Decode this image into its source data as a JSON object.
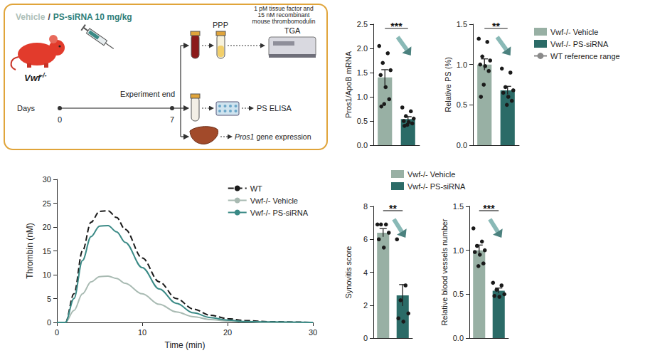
{
  "schematic": {
    "treatment": {
      "vehicle": "Vehicle",
      "separator": "/",
      "drug": "PS-siRNA 10 mg/kg"
    },
    "model": {
      "gene": "Vwf",
      "genotype": "-/-"
    },
    "timeline": {
      "axis_label": "Days",
      "ticks": [
        0,
        7
      ],
      "event": "Experiment end"
    },
    "top_branch": {
      "plasma": "PPP",
      "assay": "TGA",
      "conditions": "1 pM tissue factor and 15 nM recombinant mouse thrombomodulin"
    },
    "middle_branch": {
      "assay": "PS ELISA"
    },
    "bottom_branch": {
      "gene": "Pros1",
      "assay": "gene expression"
    }
  },
  "chart_data": [
    {
      "type": "bar",
      "y_label": "Pros1/ApoB mRNA",
      "categories": [
        null,
        null
      ],
      "series": [
        {
          "name": "Vwf-/- Vehicle",
          "color": "#98b0a4",
          "values": [
            1.4,
            null
          ],
          "error": [
            0.16,
            null
          ],
          "points": [
            [
              2.05,
              1.9,
              1.7,
              1.55,
              1.45,
              1.2,
              0.95,
              0.85,
              0.8
            ],
            null
          ]
        },
        {
          "name": "Vwf-/- PS-siRNA",
          "color": "#2b6b67",
          "values": [
            null,
            0.54
          ],
          "error": [
            null,
            0.05
          ],
          "points": [
            null,
            [
              0.78,
              0.7,
              0.6,
              0.55,
              0.5,
              0.48,
              0.45,
              0.42,
              0.4
            ]
          ]
        }
      ],
      "ylim": [
        0,
        2.5
      ],
      "yticks": [
        {
          "value": 0,
          "label": "0.0"
        },
        {
          "value": 0.5,
          "label": "0.5"
        },
        {
          "value": 1,
          "label": "1.0"
        },
        {
          "value": 1.5,
          "label": "1.5"
        },
        {
          "value": 2,
          "label": "2.0"
        },
        {
          "value": 2.5,
          "label": "2.5"
        }
      ],
      "annotation": "***",
      "tick_labels": "y"
    },
    {
      "type": "bar",
      "y_label": "Relative PS (%)",
      "categories": [
        null,
        null
      ],
      "series": [
        {
          "name": "Vwf-/- Vehicle",
          "color": "#98b0a4",
          "values": [
            1.0,
            null
          ],
          "error": [
            0.07,
            null
          ],
          "points": [
            [
              1.32,
              1.28,
              1.1,
              1.05,
              1.0,
              0.98,
              0.92,
              0.75,
              0.6
            ],
            null
          ]
        },
        {
          "name": "Vwf-/- PS-siRNA",
          "color": "#2b6b67",
          "values": [
            null,
            0.68
          ],
          "error": [
            null,
            0.05
          ],
          "points": [
            null,
            [
              0.95,
              0.9,
              0.72,
              0.68,
              0.65,
              0.6,
              0.55,
              0.5
            ]
          ]
        },
        {
          "name": "WT reference range",
          "type": "line",
          "line_style": "dashed",
          "color": "#8a8a8a",
          "values": [
            null,
            null
          ]
        }
      ],
      "ylim": [
        0,
        1.5
      ],
      "yticks": [
        {
          "value": 0,
          "label": "0.0"
        },
        {
          "value": 0.5,
          "label": "0.5"
        },
        {
          "value": 1,
          "label": "1.0"
        },
        {
          "value": 1.5,
          "label": "1.5"
        }
      ],
      "annotation": "**",
      "tick_labels": "y",
      "legend": "right"
    },
    {
      "type": "line",
      "x_label": "Time (min)",
      "y_label": "Thrombin (nM)",
      "x": [
        0,
        1,
        2,
        3,
        4,
        5,
        6,
        7,
        8,
        10,
        12,
        14,
        16,
        18,
        20,
        22,
        25,
        30
      ],
      "series": [
        {
          "name": "WT",
          "color": "#1a1a1a",
          "line_style": "dashed",
          "values": [
            0,
            0,
            6,
            15,
            21,
            23.3,
            23.4,
            22,
            19.5,
            13.5,
            8.5,
            5,
            2.8,
            1.5,
            0.8,
            0.4,
            0.15,
            0
          ]
        },
        {
          "name": "Vwf-/- Vehicle",
          "color": "#a8bab2",
          "values": [
            0,
            0,
            2.5,
            6,
            8.5,
            9.6,
            9.7,
            9.2,
            8.2,
            6,
            3.8,
            2.2,
            1.2,
            0.6,
            0.3,
            0.1,
            0,
            0
          ]
        },
        {
          "name": "Vwf-/- PS-siRNA",
          "color": "#3a8a86",
          "values": [
            0,
            0,
            5,
            13,
            18,
            20.2,
            20.3,
            19,
            16.8,
            11.5,
            7,
            4,
            2,
            1,
            0.5,
            0.2,
            0.1,
            0
          ]
        }
      ],
      "xlim": [
        0,
        30
      ],
      "xticks": [
        0,
        10,
        20,
        30
      ],
      "ylim": [
        0,
        30
      ],
      "yticks": [
        0,
        5,
        10,
        15,
        20,
        25,
        30
      ],
      "legend": "top-right"
    },
    {
      "type": "bar",
      "y_label": "Synovitis score",
      "categories": [
        null,
        null
      ],
      "series": [
        {
          "name": "Vwf-/- Vehicle",
          "color": "#98b0a4",
          "values": [
            6.4,
            null
          ],
          "error": [
            0.25,
            null
          ],
          "points": [
            [
              6.9,
              6.9,
              6.9,
              6.4,
              6.0,
              5.5
            ],
            null
          ]
        },
        {
          "name": "Vwf-/- PS-siRNA",
          "color": "#2b6b67",
          "values": [
            null,
            2.6
          ],
          "error": [
            null,
            0.65
          ],
          "points": [
            null,
            [
              6.0,
              3.2,
              2.3,
              1.5,
              1.2,
              1.0
            ]
          ]
        }
      ],
      "ylim": [
        0,
        8
      ],
      "yticks": [
        0,
        2,
        4,
        6,
        8
      ],
      "annotation": "**",
      "tick_labels": "y",
      "legend": "top"
    },
    {
      "type": "bar",
      "y_label": "Relative blood vessels number",
      "categories": [
        null,
        null
      ],
      "series": [
        {
          "name": "Vwf-/- Vehicle",
          "color": "#98b0a4",
          "values": [
            1.0,
            null
          ],
          "error": [
            0.06,
            null
          ],
          "points": [
            [
              1.25,
              1.1,
              1.05,
              1.0,
              0.98,
              0.95,
              0.85,
              0.82
            ],
            null
          ]
        },
        {
          "name": "Vwf-/- PS-siRNA",
          "color": "#2b6b67",
          "values": [
            null,
            0.54
          ],
          "error": [
            null,
            0.03
          ],
          "points": [
            null,
            [
              0.63,
              0.6,
              0.55,
              0.5,
              0.48,
              0.47
            ]
          ]
        }
      ],
      "ylim": [
        0,
        1.5
      ],
      "yticks": [
        {
          "value": 0,
          "label": "0.0"
        },
        {
          "value": 0.5,
          "label": "0.5"
        },
        {
          "value": 1,
          "label": "1.0"
        },
        {
          "value": 1.5,
          "label": "1.5"
        }
      ],
      "annotation": "***",
      "tick_labels": "y"
    }
  ]
}
